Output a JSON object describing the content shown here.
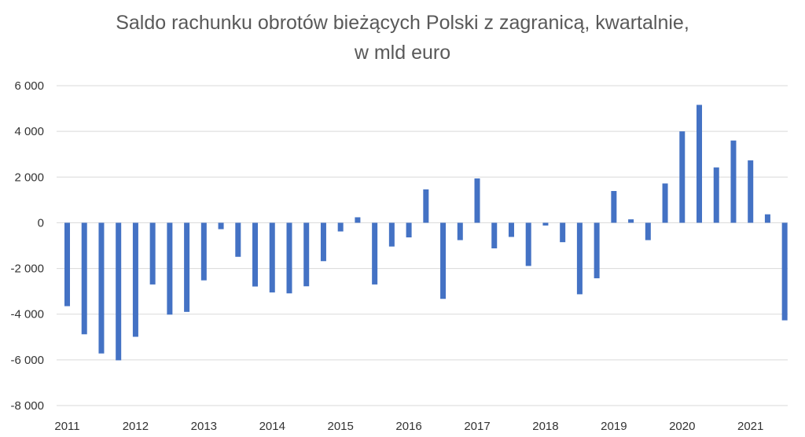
{
  "chart_data": {
    "type": "bar",
    "title_line1": "Saldo rachunku obrotów bieżących Polski z zagranicą, kwartalnie,",
    "title_line2": "w mld euro",
    "ylim": [
      -8000,
      6000
    ],
    "yticks": [
      6000,
      4000,
      2000,
      0,
      -2000,
      -4000,
      -6000,
      -8000
    ],
    "ytick_labels": [
      "6 000",
      "4 000",
      "2 000",
      "0",
      "-2 000",
      "-4 000",
      "-6 000",
      "-8 000"
    ],
    "xtick_labels": [
      "2011",
      "2012",
      "2013",
      "2014",
      "2015",
      "2016",
      "2017",
      "2018",
      "2019",
      "2020",
      "2021"
    ],
    "grid": true,
    "bar_color": "#4472C4",
    "values": [
      -3650,
      -4880,
      -5720,
      -6020,
      -4990,
      -2700,
      -4020,
      -3900,
      -2520,
      -280,
      -1490,
      -2790,
      -3050,
      -3090,
      -2780,
      -1680,
      -380,
      240,
      -2700,
      -1040,
      -640,
      1460,
      -3330,
      -760,
      1940,
      -1120,
      -620,
      -1890,
      -120,
      -850,
      -3130,
      -2430,
      1390,
      150,
      -760,
      1720,
      4000,
      5160,
      2420,
      3600,
      2730,
      370,
      -4270
    ]
  }
}
